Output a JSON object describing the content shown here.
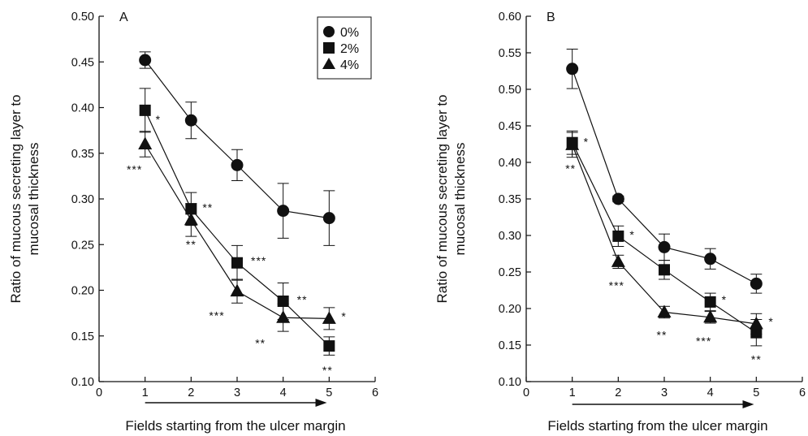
{
  "chart_data": [
    {
      "type": "line",
      "panel_label": "A",
      "xlabel": "Fields starting from the ulcer margin",
      "ylabel": "Ratio of mucous secreting layer to mucosal thickness",
      "xlim": [
        0,
        6
      ],
      "ylim": [
        0.1,
        0.5
      ],
      "xticks": [
        "0",
        "1",
        "2",
        "3",
        "4",
        "5",
        "6"
      ],
      "yticks": [
        "0.10",
        "0.15",
        "0.20",
        "0.25",
        "0.30",
        "0.35",
        "0.40",
        "0.45",
        "0.50"
      ],
      "x": [
        1,
        2,
        3,
        4,
        5
      ],
      "legend": {
        "placement": "top-right",
        "entries": [
          "0%",
          "2%",
          "4%"
        ]
      },
      "arrow": true,
      "series": [
        {
          "name": "0%",
          "marker": "circle",
          "values": [
            0.452,
            0.386,
            0.337,
            0.287,
            0.279
          ],
          "errors": [
            0.009,
            0.02,
            0.017,
            0.03,
            0.03
          ],
          "annotations": [
            "",
            "",
            "",
            "",
            ""
          ]
        },
        {
          "name": "2%",
          "marker": "square",
          "values": [
            0.397,
            0.289,
            0.23,
            0.188,
            0.139
          ],
          "errors": [
            0.024,
            0.018,
            0.019,
            0.02,
            0.01
          ],
          "annotations": [
            "*",
            "**",
            "***",
            "**",
            "**"
          ]
        },
        {
          "name": "4%",
          "marker": "triangle",
          "values": [
            0.36,
            0.277,
            0.199,
            0.17,
            0.169
          ],
          "errors": [
            0.014,
            0.018,
            0.013,
            0.015,
            0.012
          ],
          "annotations": [
            "***",
            "**",
            "***",
            "**",
            "*"
          ]
        }
      ]
    },
    {
      "type": "line",
      "panel_label": "B",
      "xlabel": "Fields starting from the ulcer margin",
      "ylabel": "Ratio of mucous secreting layer to mucosal thickness",
      "xlim": [
        0,
        6
      ],
      "ylim": [
        0.1,
        0.6
      ],
      "xticks": [
        "0",
        "1",
        "2",
        "3",
        "4",
        "5",
        "6"
      ],
      "yticks": [
        "0.10",
        "0.15",
        "0.20",
        "0.25",
        "0.30",
        "0.35",
        "0.40",
        "0.45",
        "0.50",
        "0.55",
        "0.60"
      ],
      "x": [
        1,
        2,
        3,
        4,
        5
      ],
      "arrow": true,
      "series": [
        {
          "name": "0%",
          "marker": "circle",
          "values": [
            0.528,
            0.35,
            0.284,
            0.268,
            0.234
          ],
          "errors": [
            0.027,
            0.004,
            0.018,
            0.014,
            0.013
          ],
          "annotations": [
            "",
            "",
            "",
            "",
            ""
          ]
        },
        {
          "name": "2%",
          "marker": "square",
          "values": [
            0.427,
            0.299,
            0.253,
            0.209,
            0.167
          ],
          "errors": [
            0.016,
            0.014,
            0.013,
            0.012,
            0.018
          ],
          "annotations": [
            "*",
            "*",
            "",
            "*",
            "**"
          ]
        },
        {
          "name": "4%",
          "marker": "triangle",
          "values": [
            0.424,
            0.264,
            0.195,
            0.188,
            0.179
          ],
          "errors": [
            0.017,
            0.009,
            0.008,
            0.008,
            0.014
          ],
          "annotations": [
            "**",
            "***",
            "**",
            "***",
            "*"
          ]
        }
      ]
    }
  ]
}
